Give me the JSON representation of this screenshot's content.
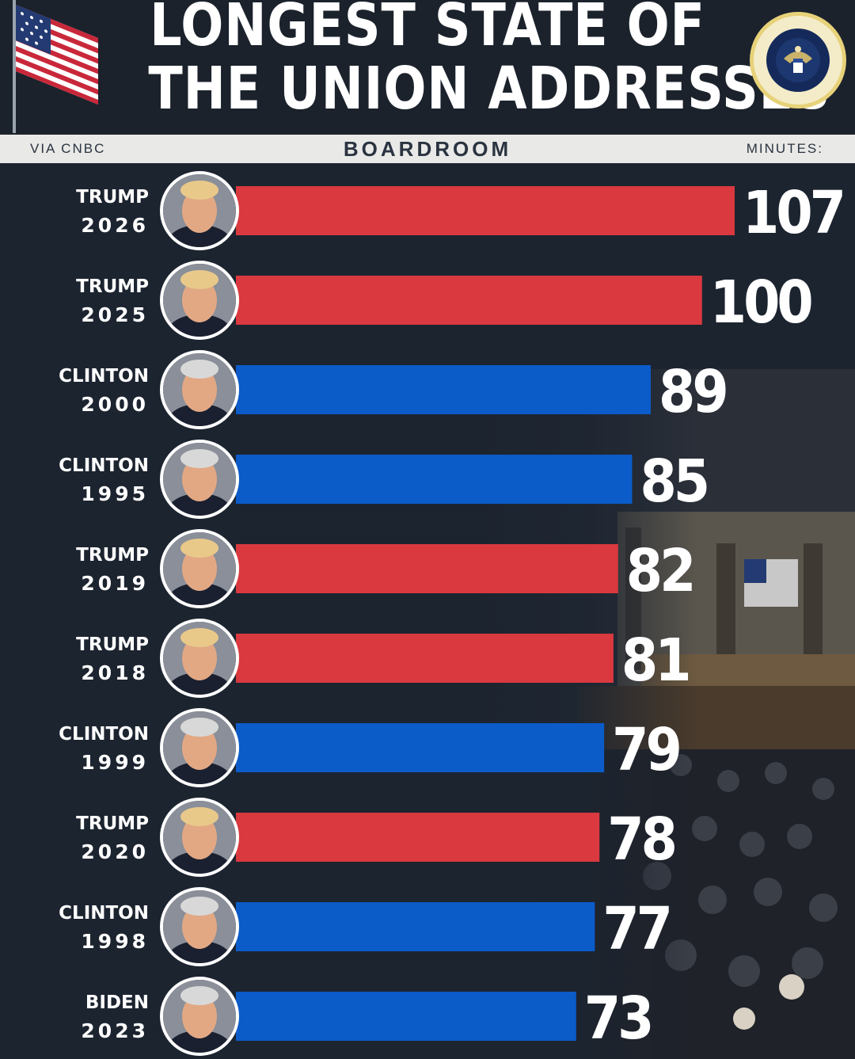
{
  "header": {
    "title_line1": "LONGEST STATE OF",
    "title_line2": "THE UNION ADDRESSES",
    "source": "VIA CNBC",
    "brand": "BOARDROOM",
    "unit_label": "MINUTES:"
  },
  "colors": {
    "republican": "#d9393f",
    "democrat": "#0b5bc9",
    "background": "#1c2430"
  },
  "chart_data": {
    "type": "bar",
    "orientation": "horizontal",
    "categories": [
      {
        "name": "TRUMP",
        "year": "2026"
      },
      {
        "name": "TRUMP",
        "year": "2025"
      },
      {
        "name": "CLINTON",
        "year": "2000"
      },
      {
        "name": "CLINTON",
        "year": "1995"
      },
      {
        "name": "TRUMP",
        "year": "2019"
      },
      {
        "name": "TRUMP",
        "year": "2018"
      },
      {
        "name": "CLINTON",
        "year": "1999"
      },
      {
        "name": "TRUMP",
        "year": "2020"
      },
      {
        "name": "CLINTON",
        "year": "1998"
      },
      {
        "name": "BIDEN",
        "year": "2023"
      }
    ],
    "values": [
      107,
      100,
      89,
      85,
      82,
      81,
      79,
      78,
      77,
      73
    ],
    "party": [
      "republican",
      "republican",
      "democrat",
      "democrat",
      "republican",
      "republican",
      "democrat",
      "republican",
      "democrat",
      "democrat"
    ],
    "value_unit": "minutes",
    "grid": false,
    "legend": "none"
  }
}
